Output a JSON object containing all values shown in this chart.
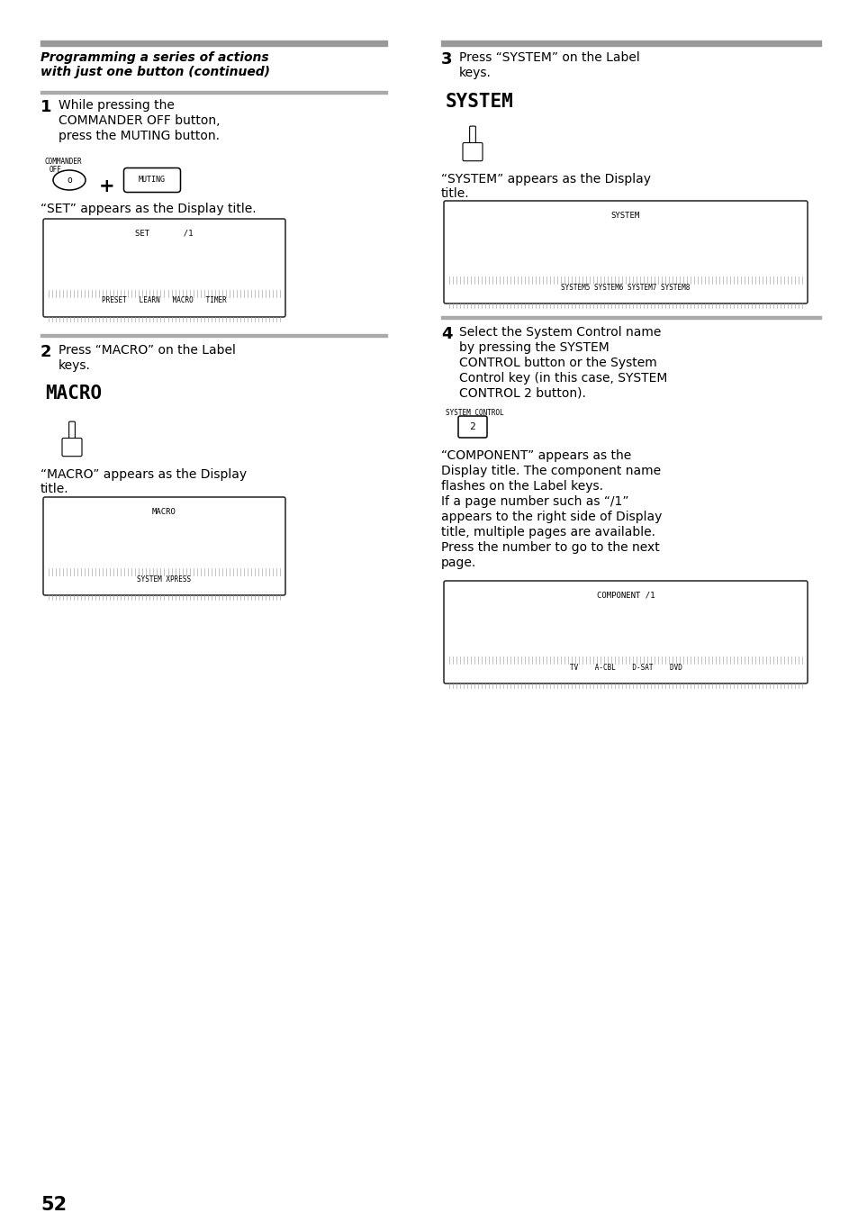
{
  "page_number": "52",
  "bg_color": "#ffffff",
  "text_color": "#000000",
  "divider_color": "#888888",
  "title_line1": "Programming a series of actions",
  "title_line2": "with just one button (continued)",
  "step1_number": "1",
  "step1_line1": "While pressing the",
  "step1_line2": "COMMANDER OFF button,",
  "step1_line3": "press the MUTING button.",
  "commander_label1": "COMMANDER",
  "commander_label2": "OFF",
  "step1_display_text": "“SET” appears as the Display title.",
  "set_display_title": "SET       /1",
  "set_display_labels": "PRESET   LEARN   MACRO   TIMER",
  "step2_number": "2",
  "step2_line1": "Press “MACRO” on the Label",
  "step2_line2": "keys.",
  "macro_label": "MACRO",
  "step2_display_line1": "“MACRO” appears as the Display",
  "step2_display_line2": "title.",
  "macro_display_title": "MACRO",
  "macro_display_labels": "SYSTEM XPRESS",
  "step3_number": "3",
  "step3_line1": "Press “SYSTEM” on the Label",
  "step3_line2": "keys.",
  "system_label": "SYSTEM",
  "step3_display_line1": "“SYSTEM” appears as the Display",
  "step3_display_line2": "title.",
  "system_display_title": "SYSTEM",
  "system_display_labels": "SYSTEM5 SYSTEM6 SYSTEM7 SYSTEM8",
  "step4_number": "4",
  "step4_line1": "Select the System Control name",
  "step4_line2": "by pressing the SYSTEM",
  "step4_line3": "CONTROL button or the System",
  "step4_line4": "Control key (in this case, SYSTEM",
  "step4_line5": "CONTROL 2 button).",
  "system_control_label": "SYSTEM CONTROL",
  "step4_desc_line1": "“COMPONENT” appears as the",
  "step4_desc_line2": "Display title. The component name",
  "step4_desc_line3": "flashes on the Label keys.",
  "step4_desc_line4": "If a page number such as “/1”",
  "step4_desc_line5": "appears to the right side of Display",
  "step4_desc_line6": "title, multiple pages are available.",
  "step4_desc_line7": "Press the number to go to the next",
  "step4_desc_line8": "page.",
  "component_display_title": "COMPONENT /1",
  "component_display_labels": "TV    A-CBL    D-SAT    DVD"
}
